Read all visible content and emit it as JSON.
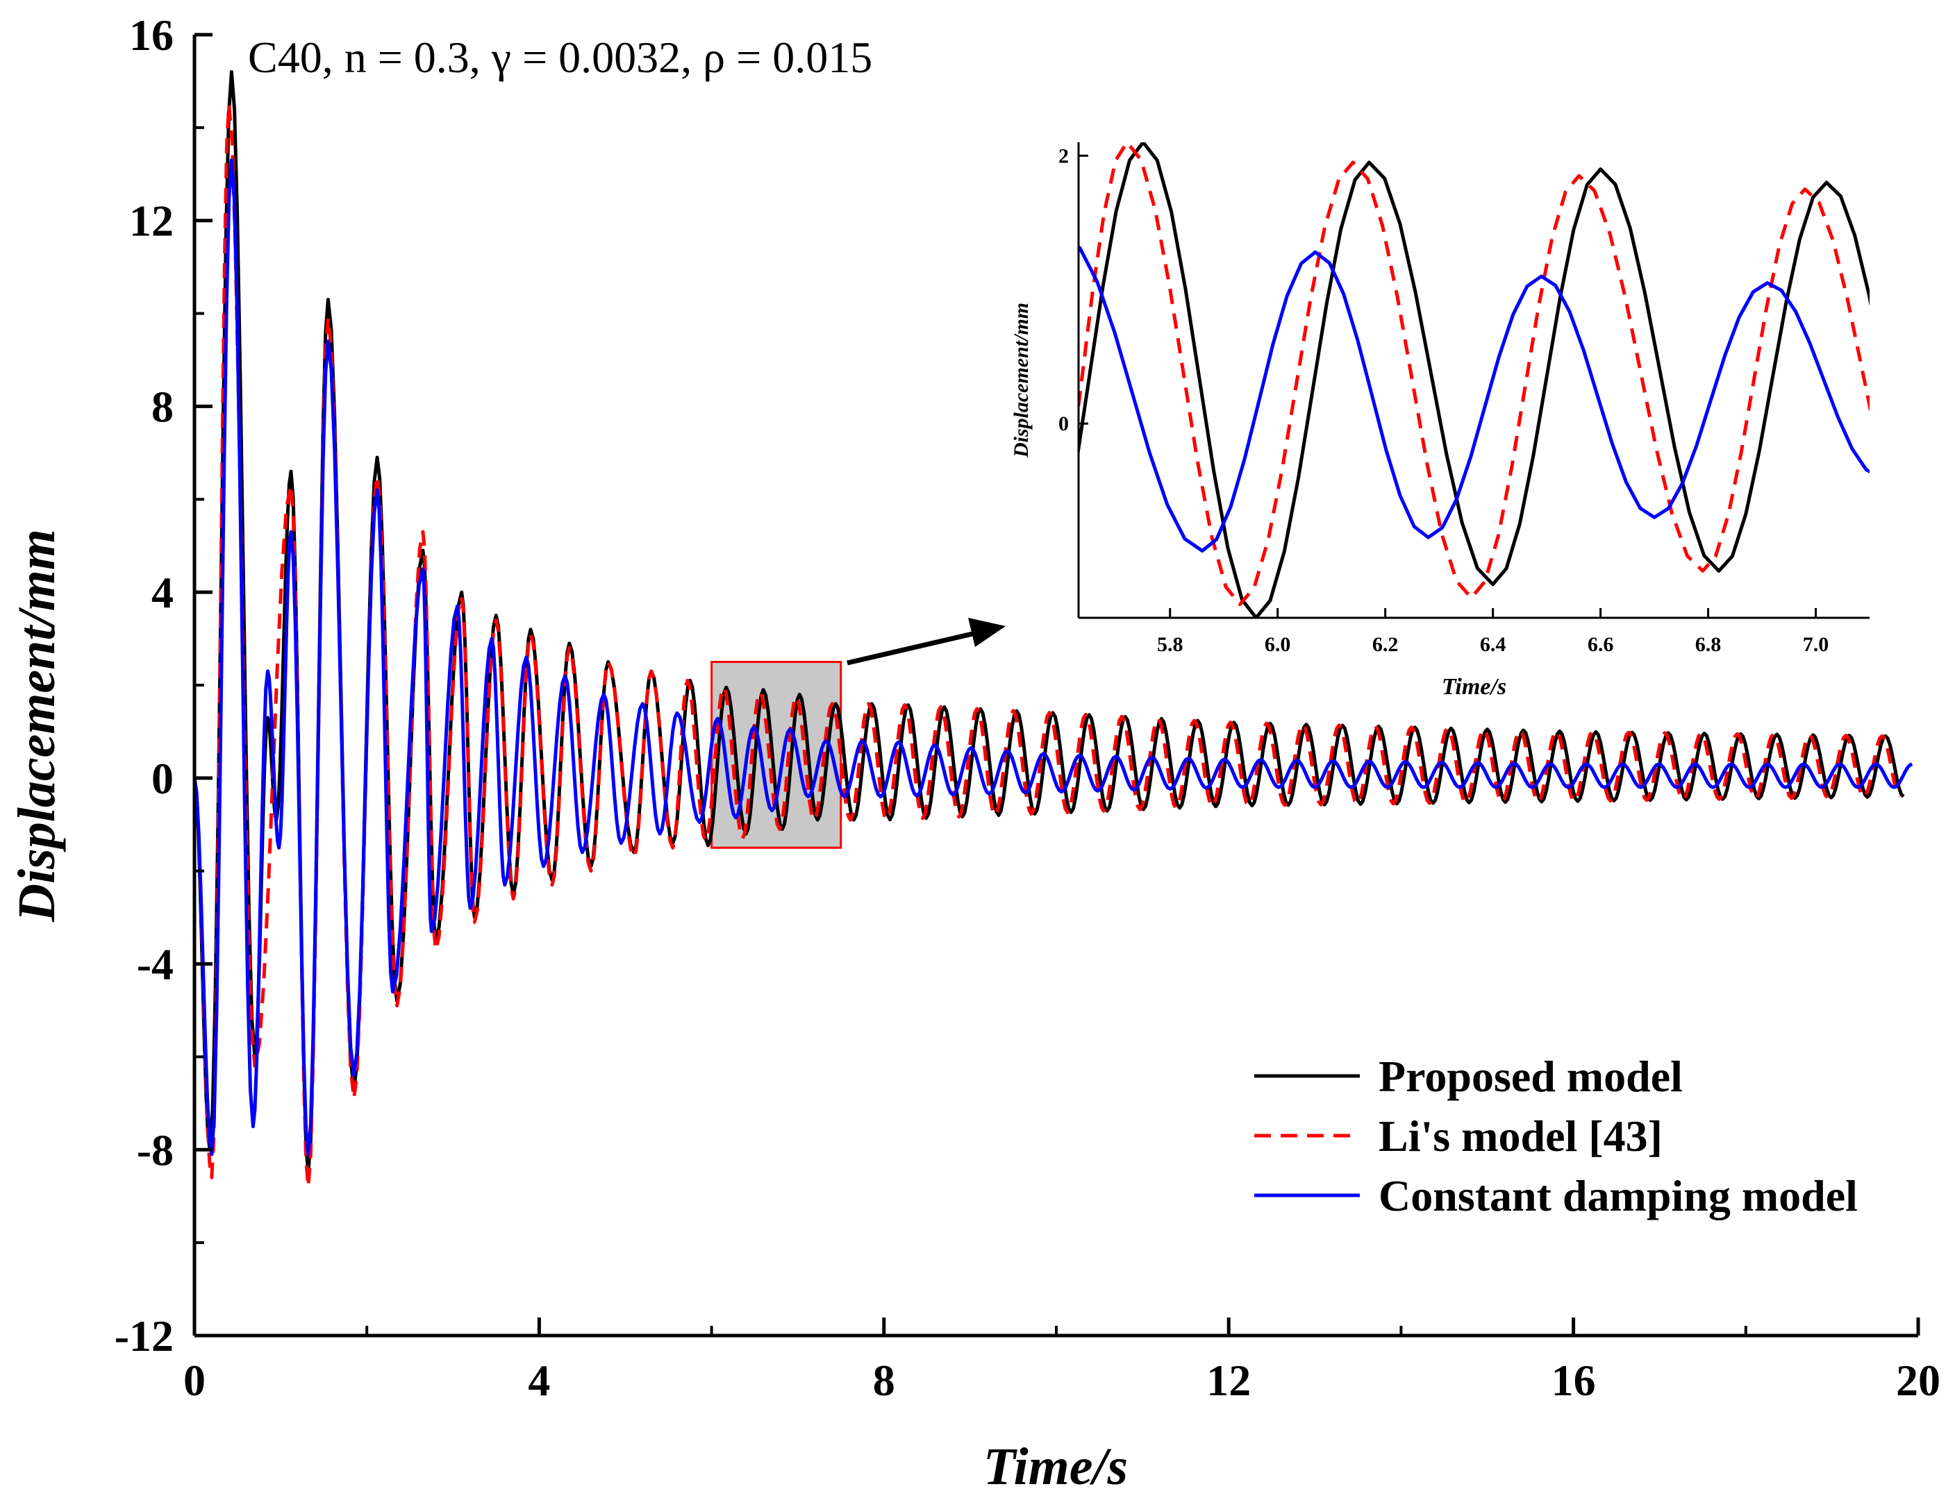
{
  "chart_data": {
    "type": "line",
    "title": "",
    "annotation": "C40, n = 0.3, γ = 0.0032, ρ = 0.015",
    "xlabel": "Time/s",
    "ylabel": "Displacement/mm",
    "xlim": [
      0,
      20
    ],
    "ylim": [
      -12,
      16
    ],
    "xticks": [
      "0",
      "4",
      "8",
      "12",
      "16",
      "20"
    ],
    "yticks": [
      "-12",
      "-8",
      "-4",
      "0",
      "4",
      "8",
      "12",
      "16"
    ],
    "xtick_values": [
      0,
      4,
      8,
      12,
      16,
      20
    ],
    "ytick_values": [
      -12,
      -8,
      -4,
      0,
      4,
      8,
      12,
      16
    ],
    "grid": false,
    "legend_position": "bottom-right",
    "colors": {
      "proposed": "#000000",
      "li": "#ff0000",
      "constant": "#0000ff",
      "zoom_box": "#ff0000",
      "zoom_fill": "#c8c8c8"
    },
    "series": [
      {
        "name": "Proposed model",
        "style": "solid",
        "color": "#000000",
        "description": "damped oscillation, nearly matched by Li's model",
        "peaks": [
          [
            0.43,
            15.2
          ],
          [
            0.85,
            1.3
          ],
          [
            1.12,
            6.6
          ],
          [
            1.55,
            10.3
          ],
          [
            2.12,
            6.9
          ],
          [
            2.65,
            4.9
          ],
          [
            3.1,
            4.0
          ],
          [
            3.5,
            3.5
          ],
          [
            3.9,
            3.2
          ],
          [
            4.35,
            2.9
          ],
          [
            4.8,
            2.5
          ],
          [
            5.3,
            2.3
          ],
          [
            5.75,
            2.1
          ],
          [
            6.17,
            1.95
          ],
          [
            6.6,
            1.9
          ],
          [
            7.02,
            1.8
          ],
          [
            8.0,
            1.6
          ],
          [
            10.0,
            1.4
          ],
          [
            12.0,
            1.2
          ],
          [
            14.0,
            1.1
          ],
          [
            16.0,
            1.0
          ],
          [
            18.0,
            0.95
          ],
          [
            19.8,
            0.9
          ]
        ],
        "troughs": [
          [
            0.18,
            -8.0
          ],
          [
            0.7,
            -6.0
          ],
          [
            0.95,
            -0.9
          ],
          [
            1.32,
            -8.5
          ],
          [
            1.85,
            -6.7
          ],
          [
            2.35,
            -4.8
          ],
          [
            2.8,
            -3.5
          ],
          [
            3.25,
            -3.0
          ],
          [
            3.7,
            -2.5
          ],
          [
            4.15,
            -2.2
          ],
          [
            4.6,
            -1.9
          ],
          [
            5.1,
            -1.6
          ],
          [
            5.55,
            -1.4
          ],
          [
            5.96,
            -1.45
          ],
          [
            6.4,
            -1.2
          ],
          [
            6.82,
            -1.1
          ],
          [
            8.0,
            -0.9
          ],
          [
            12.0,
            -0.6
          ],
          [
            16.0,
            -0.5
          ],
          [
            19.8,
            -0.4
          ]
        ]
      },
      {
        "name": "Li's model [43]",
        "style": "dashed",
        "color": "#ff0000",
        "description": "damped oscillation slightly leading the proposed model",
        "peaks": [
          [
            0.4,
            14.5
          ],
          [
            1.12,
            6.3
          ],
          [
            1.55,
            9.9
          ],
          [
            2.12,
            6.5
          ],
          [
            2.65,
            5.3
          ],
          [
            3.1,
            3.9
          ],
          [
            3.5,
            3.4
          ],
          [
            3.9,
            3.1
          ],
          [
            4.35,
            2.8
          ],
          [
            4.8,
            2.5
          ],
          [
            5.3,
            2.3
          ],
          [
            5.72,
            2.1
          ],
          [
            6.14,
            1.95
          ],
          [
            6.56,
            1.85
          ],
          [
            6.98,
            1.75
          ],
          [
            8.0,
            1.6
          ],
          [
            12.0,
            1.2
          ],
          [
            16.0,
            1.0
          ],
          [
            19.8,
            0.9
          ]
        ],
        "troughs": [
          [
            0.2,
            -8.6
          ],
          [
            0.7,
            -6.2
          ],
          [
            1.32,
            -8.8
          ],
          [
            1.85,
            -6.9
          ],
          [
            2.35,
            -4.9
          ],
          [
            2.8,
            -3.7
          ],
          [
            3.25,
            -3.1
          ],
          [
            3.7,
            -2.6
          ],
          [
            4.15,
            -2.3
          ],
          [
            4.6,
            -2.0
          ],
          [
            5.1,
            -1.7
          ],
          [
            5.55,
            -1.5
          ],
          [
            5.93,
            -1.35
          ],
          [
            6.36,
            -1.3
          ],
          [
            6.79,
            -1.1
          ],
          [
            8.0,
            -0.9
          ],
          [
            12.0,
            -0.6
          ],
          [
            16.0,
            -0.5
          ],
          [
            19.8,
            -0.4
          ]
        ]
      },
      {
        "name": "Constant damping model",
        "style": "solid",
        "color": "#0000ff",
        "description": "damped oscillation with larger decay, amplitude ~0.3 after t=10 s",
        "peaks": [
          [
            0.43,
            13.3
          ],
          [
            0.85,
            2.3
          ],
          [
            1.12,
            5.3
          ],
          [
            1.55,
            9.4
          ],
          [
            2.12,
            6.2
          ],
          [
            2.65,
            4.5
          ],
          [
            3.05,
            3.7
          ],
          [
            3.45,
            3.0
          ],
          [
            3.85,
            2.6
          ],
          [
            4.3,
            2.2
          ],
          [
            4.75,
            1.8
          ],
          [
            5.2,
            1.6
          ],
          [
            5.6,
            1.4
          ],
          [
            6.07,
            1.28
          ],
          [
            6.49,
            1.1
          ],
          [
            6.91,
            1.05
          ],
          [
            8.0,
            0.8
          ],
          [
            10.0,
            0.5
          ],
          [
            12.0,
            0.4
          ],
          [
            16.0,
            0.3
          ],
          [
            19.8,
            0.3
          ]
        ],
        "troughs": [
          [
            0.2,
            -8.1
          ],
          [
            0.68,
            -7.5
          ],
          [
            0.98,
            -1.5
          ],
          [
            1.32,
            -8.1
          ],
          [
            1.85,
            -6.4
          ],
          [
            2.3,
            -4.6
          ],
          [
            2.75,
            -3.3
          ],
          [
            3.2,
            -2.8
          ],
          [
            3.6,
            -2.3
          ],
          [
            4.05,
            -1.9
          ],
          [
            4.5,
            -1.6
          ],
          [
            4.95,
            -1.4
          ],
          [
            5.4,
            -1.2
          ],
          [
            5.86,
            -0.95
          ],
          [
            6.28,
            -0.85
          ],
          [
            6.7,
            -0.7
          ],
          [
            8.0,
            -0.4
          ],
          [
            10.0,
            -0.3
          ],
          [
            12.0,
            -0.2
          ],
          [
            16.0,
            -0.2
          ],
          [
            19.8,
            -0.2
          ]
        ]
      }
    ],
    "zoom_box": {
      "x_range": [
        6.0,
        7.5
      ],
      "y_range": [
        -1.5,
        2.5
      ]
    },
    "inset": {
      "xlabel": "Time/s",
      "ylabel": "Displacement/mm",
      "xlim": [
        5.63,
        7.1
      ],
      "ylim": [
        -1.45,
        2.1
      ],
      "xticks": [
        "5.8",
        "6.0",
        "6.2",
        "6.4",
        "6.6",
        "6.8",
        "7.0"
      ],
      "yticks": [
        "0",
        "2"
      ],
      "xtick_values": [
        5.8,
        6.0,
        6.2,
        6.4,
        6.6,
        6.8,
        7.0
      ],
      "ytick_values": [
        0,
        2
      ]
    }
  },
  "legend": {
    "items": [
      "Proposed model",
      "Li's model [43]",
      "Constant damping model"
    ]
  }
}
